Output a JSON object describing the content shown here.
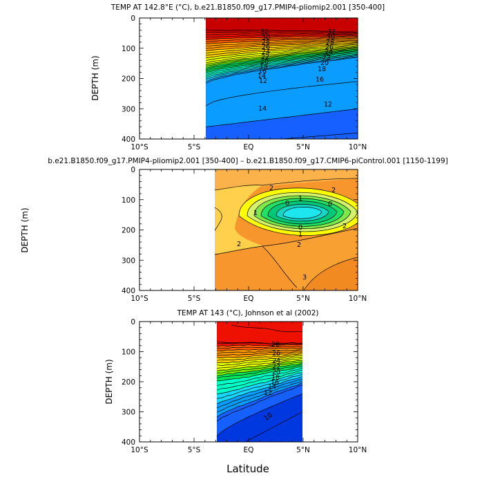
{
  "chart_data": [
    {
      "type": "contour",
      "title": "TEMP AT 142.8°E (°C), b.e21.B1850.f09_g17.PMIP4-pliomip2.001 [350-400]",
      "xlabel": "",
      "ylabel": "DEPTH (m)",
      "xlim": [
        -10,
        10
      ],
      "ylim": [
        0,
        400
      ],
      "data_xlim": [
        -3.8,
        10
      ],
      "x_ticks": [
        "10°S",
        "5°S",
        "EQ",
        "5°N",
        "10°N"
      ],
      "y_ticks": [
        "0",
        "100",
        "200",
        "300",
        "400"
      ],
      "contour_interval": 1,
      "contour_labels": [
        "32",
        "30",
        "28",
        "26",
        "24",
        "22",
        "20",
        "18",
        "16",
        "14",
        "12",
        "32",
        "30",
        "28",
        "26",
        "24",
        "22",
        "20",
        "18",
        "16",
        "14",
        "12"
      ],
      "palette": [
        "#1560ff",
        "#0a9cff",
        "#18d8ff",
        "#00ffc8",
        "#00e55a",
        "#7ef000",
        "#e6ff00",
        "#ffd200",
        "#ff9900",
        "#ff5a00",
        "#ee1000",
        "#c80000"
      ]
    },
    {
      "type": "contour",
      "title": "b.e21.B1850.f09_g17.PMIP4-pliomip2.001 [350-400] – b.e21.B1850.f09_g17.CMIP6-piControl.001 [1150-1199]",
      "xlabel": "",
      "ylabel": "DEPTH (m)",
      "xlim": [
        -10,
        10
      ],
      "ylim": [
        0,
        400
      ],
      "data_xlim": [
        -3,
        10
      ],
      "x_ticks": [
        "10°S",
        "5°S",
        "EQ",
        "5°N",
        "10°N"
      ],
      "y_ticks": [
        "0",
        "100",
        "200",
        "300",
        "400"
      ],
      "contour_interval": 0.5,
      "contour_labels": [
        "2",
        "2",
        "1",
        "0",
        "0",
        "1",
        "0",
        "1",
        "2",
        "2",
        "2",
        "3"
      ],
      "palette": [
        "#00c878",
        "#22e064",
        "#7ee84a",
        "#d6f26a",
        "#ffff00",
        "#ffd04c",
        "#fbae3c",
        "#f9962a",
        "#f28a22"
      ]
    },
    {
      "type": "contour",
      "title": "TEMP AT 143 (°C), Johnson et al (2002)",
      "xlabel": "Latitude",
      "ylabel": "DEPTH (m)",
      "xlim": [
        -10,
        10
      ],
      "ylim": [
        0,
        400
      ],
      "data_xlim": [
        -2.8,
        5
      ],
      "x_ticks": [
        "10°S",
        "5°S",
        "EQ",
        "5°N",
        "10°N"
      ],
      "y_ticks": [
        "0",
        "100",
        "200",
        "300",
        "400"
      ],
      "contour_interval": 1,
      "contour_labels": [
        "28",
        "26",
        "24",
        "22",
        "20",
        "18",
        "16",
        "14",
        "12",
        "10"
      ],
      "palette": [
        "#0038e0",
        "#1560ff",
        "#0a9cff",
        "#18d8ff",
        "#00ffc8",
        "#00e55a",
        "#7ef000",
        "#e6ff00",
        "#ffd200",
        "#ff9900",
        "#ff5a00",
        "#ee1000"
      ]
    }
  ]
}
